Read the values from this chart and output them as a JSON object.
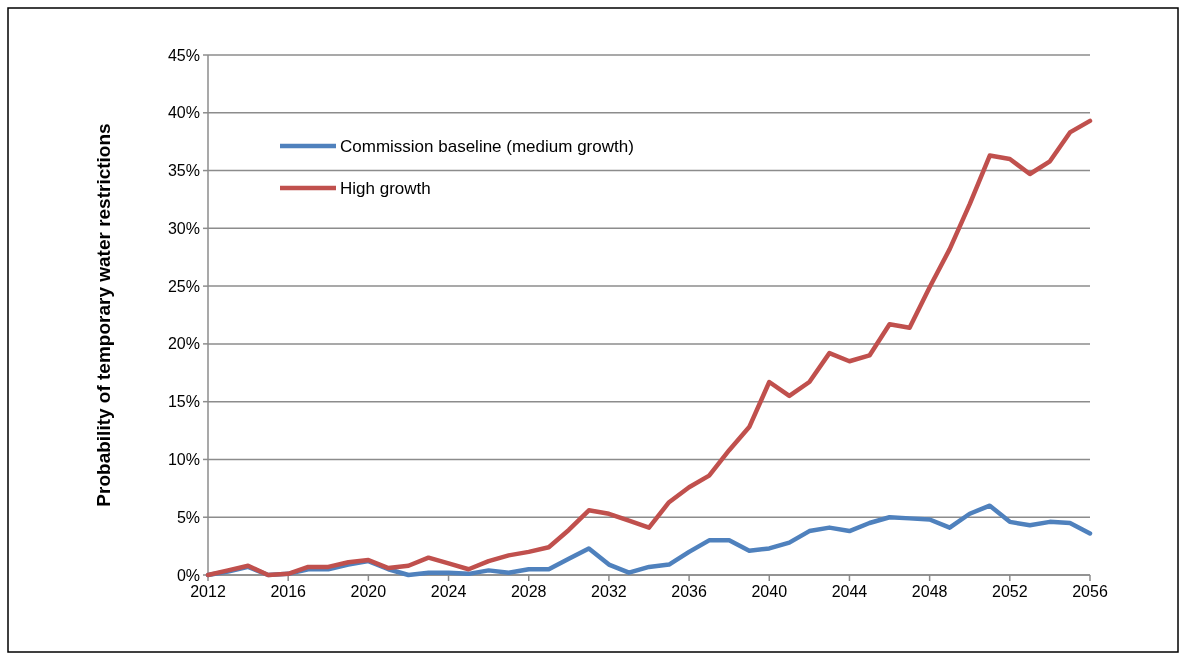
{
  "chart_data": {
    "type": "line",
    "ylabel": "Probability of temporary water restrictions",
    "x": [
      2012,
      2013,
      2014,
      2015,
      2016,
      2017,
      2018,
      2019,
      2020,
      2021,
      2022,
      2023,
      2024,
      2025,
      2026,
      2027,
      2028,
      2029,
      2030,
      2031,
      2032,
      2033,
      2034,
      2035,
      2036,
      2037,
      2038,
      2039,
      2040,
      2041,
      2042,
      2043,
      2044,
      2045,
      2046,
      2047,
      2048,
      2049,
      2050,
      2051,
      2052,
      2053,
      2054,
      2055,
      2056
    ],
    "series": [
      {
        "name": "Commission baseline (medium growth)",
        "color": "#4f81bd",
        "values": [
          0,
          0.3,
          0.7,
          0,
          0.1,
          0.5,
          0.5,
          0.9,
          1.2,
          0.5,
          0,
          0.2,
          0.2,
          0.1,
          0.4,
          0.2,
          0.5,
          0.5,
          1.4,
          2.3,
          0.9,
          0.2,
          0.7,
          0.9,
          2.0,
          3.0,
          3.0,
          2.1,
          2.3,
          2.8,
          3.8,
          4.1,
          3.8,
          4.5,
          5.0,
          4.9,
          4.8,
          4.1,
          5.3,
          6.0,
          4.6,
          4.3,
          4.6,
          4.5,
          3.6
        ]
      },
      {
        "name": "High growth",
        "color": "#c0504d",
        "values": [
          0,
          0.4,
          0.8,
          0,
          0.1,
          0.7,
          0.7,
          1.1,
          1.3,
          0.6,
          0.8,
          1.5,
          1.0,
          0.5,
          1.2,
          1.7,
          2.0,
          2.4,
          3.9,
          5.6,
          5.3,
          4.7,
          4.1,
          6.3,
          7.6,
          8.6,
          10.8,
          12.8,
          16.7,
          15.5,
          16.7,
          19.2,
          18.5,
          19.0,
          21.7,
          21.4,
          24.9,
          28.2,
          32.1,
          36.3,
          36.0,
          34.7,
          35.8,
          38.3,
          39.3
        ]
      }
    ],
    "xlim": [
      2012,
      2056
    ],
    "xticks": [
      2012,
      2016,
      2020,
      2024,
      2028,
      2032,
      2036,
      2040,
      2044,
      2048,
      2052,
      2056
    ],
    "ylim": [
      0,
      45
    ],
    "yticks": [
      {
        "value": 0,
        "label": "0%"
      },
      {
        "value": 5,
        "label": "5%"
      },
      {
        "value": 10,
        "label": "10%"
      },
      {
        "value": 15,
        "label": "15%"
      },
      {
        "value": 20,
        "label": "20%"
      },
      {
        "value": 25,
        "label": "25%"
      },
      {
        "value": 30,
        "label": "30%"
      },
      {
        "value": 35,
        "label": "35%"
      },
      {
        "value": 40,
        "label": "40%"
      },
      {
        "value": 45,
        "label": "45%"
      }
    ],
    "grid": "y",
    "legend": "top left",
    "line_style": "solid",
    "marker": "none"
  }
}
